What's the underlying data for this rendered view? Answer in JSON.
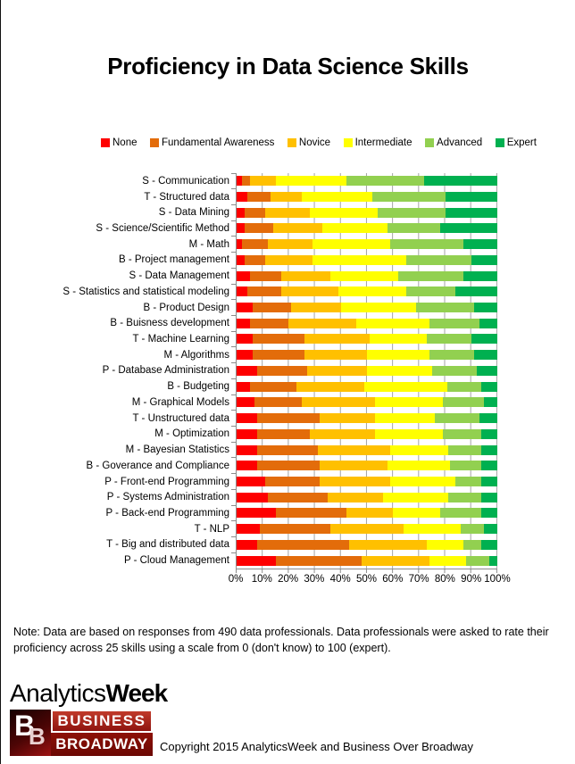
{
  "page": {
    "note": "Note: Data are based on responses from 490 data professionals. Data professionals were asked to rate their proficiency across 25 skills using a scale from 0 (don't know) to 100 (expert).",
    "copyright": "Copyright 2015 AnalyticsWeek and Business Over Broadway"
  },
  "branding": {
    "analyticsweek_part1": "Analytics",
    "analyticsweek_part2": "Week",
    "bb_b1": "B",
    "bb_b2": "B",
    "bb_line1": "BUSINESS",
    "bb_line2": "BROADWAY"
  },
  "chart_data": {
    "type": "bar",
    "orientation": "horizontal-stacked",
    "title": "Proficiency in Data Science Skills",
    "legend_position": "top",
    "grid": "vertical",
    "x_axis": {
      "range": [
        0,
        100
      ],
      "unit": "%",
      "ticks": [
        "0%",
        "10%",
        "20%",
        "30%",
        "40%",
        "50%",
        "60%",
        "70%",
        "80%",
        "90%",
        "100%"
      ]
    },
    "categories": [
      "S - Communication",
      "T - Structured data",
      "S - Data Mining",
      "S - Science/Scientific Method",
      "M - Math",
      "B - Project management",
      "S - Data Management",
      "S - Statistics and statistical modeling",
      "B - Product Design",
      "B - Buisness development",
      "T - Machine Learning",
      "M - Algorithms",
      "P - Database Administration",
      "B - Budgeting",
      "M - Graphical Models",
      "T - Unstructured data",
      "M - Optimization",
      "M - Bayesian Statistics",
      "B - Goverance and Compliance",
      "P - Front-end Programming",
      "P - Systems Administration",
      "P - Back-end Programming",
      "T - NLP",
      "T - Big and distributed data",
      "P - Cloud Management"
    ],
    "series": [
      {
        "name": "None",
        "color": "#FE0000",
        "values": [
          2,
          4,
          3,
          3,
          2,
          3,
          5,
          4,
          6,
          5,
          6,
          6,
          8,
          5,
          7,
          8,
          8,
          8,
          8,
          11,
          12,
          15,
          9,
          8,
          15
        ]
      },
      {
        "name": "Fundamental Awareness",
        "color": "#E36C0A",
        "values": [
          3,
          9,
          8,
          11,
          10,
          8,
          12,
          13,
          15,
          15,
          20,
          20,
          19,
          18,
          18,
          24,
          20,
          23,
          24,
          21,
          23,
          27,
          27,
          35,
          33
        ]
      },
      {
        "name": "Novice",
        "color": "#FFC000",
        "values": [
          10,
          12,
          17,
          19,
          17,
          18,
          19,
          22,
          19,
          26,
          25,
          24,
          23,
          26,
          28,
          21,
          25,
          28,
          26,
          27,
          21,
          18,
          28,
          30,
          26
        ]
      },
      {
        "name": "Intermediate",
        "color": "#FFFF00",
        "values": [
          27,
          27,
          26,
          25,
          30,
          36,
          26,
          26,
          29,
          28,
          22,
          24,
          25,
          32,
          26,
          23,
          26,
          22,
          24,
          25,
          25,
          18,
          22,
          14,
          14
        ]
      },
      {
        "name": "Advanced",
        "color": "#92D050",
        "values": [
          30,
          28,
          26,
          20,
          28,
          25,
          25,
          19,
          22,
          19,
          17,
          17,
          17,
          13,
          16,
          17,
          15,
          13,
          12,
          10,
          13,
          16,
          9,
          7,
          9
        ]
      },
      {
        "name": "Expert",
        "color": "#00B050",
        "values": [
          28,
          20,
          20,
          22,
          13,
          10,
          13,
          16,
          9,
          7,
          10,
          9,
          8,
          6,
          5,
          7,
          6,
          6,
          6,
          6,
          6,
          6,
          5,
          6,
          3
        ]
      }
    ]
  }
}
